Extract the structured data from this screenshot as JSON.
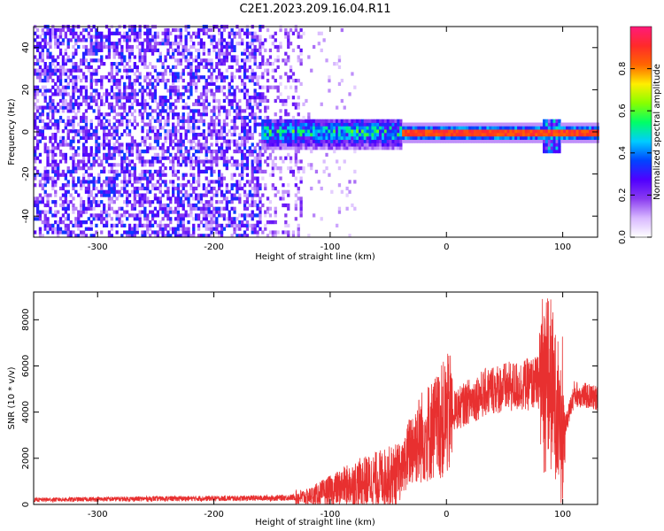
{
  "chart_data": [
    {
      "type": "heatmap",
      "title": "C2E1.2023.209.16.04.R11",
      "xlabel": "Height of straight line (km)",
      "ylabel": "Frequency (Hz)",
      "xlim": [
        -355,
        130
      ],
      "ylim": [
        -50,
        50
      ],
      "xticks": [
        -300,
        -200,
        -100,
        0,
        100
      ],
      "yticks": [
        -40,
        -20,
        0,
        20,
        40
      ],
      "colorbar": {
        "label": "Normalized spectral amplitude",
        "range": [
          0.0,
          1.0
        ],
        "ticks": [
          0.0,
          0.2,
          0.4,
          0.6,
          0.8
        ],
        "colors": [
          "#ffffff",
          "#d8b8ff",
          "#8a3cf0",
          "#5000ff",
          "#0044ff",
          "#00ccff",
          "#00ff66",
          "#88ff00",
          "#ffee00",
          "#ff6600",
          "#ff2a2a",
          "#ff1a7a"
        ]
      },
      "regions": [
        {
          "name": "broadband noise",
          "x_range": [
            -355,
            -130
          ],
          "freq_range": [
            -50,
            50
          ],
          "amplitude": 0.2
        },
        {
          "name": "scattered band",
          "x_range": [
            -160,
            -40
          ],
          "freq_range": [
            -8,
            6
          ],
          "amplitude": 0.35
        },
        {
          "name": "narrow line",
          "x_range": [
            -40,
            130
          ],
          "freq_range": [
            -1.5,
            1.5
          ],
          "amplitude": 0.85
        },
        {
          "name": "spread near 90 km",
          "x_range": [
            82,
            96
          ],
          "freq_range": [
            -10,
            6
          ],
          "amplitude": 0.4
        }
      ]
    },
    {
      "type": "line",
      "xlabel": "Height of straight line (km)",
      "ylabel": "SNR (10 * v/v)",
      "xlim": [
        -355,
        130
      ],
      "ylim": [
        0,
        9200
      ],
      "xticks": [
        -300,
        -200,
        -100,
        0,
        100
      ],
      "yticks": [
        0,
        2000,
        4000,
        6000,
        8000
      ],
      "color": "#e83030",
      "series": [
        {
          "x": [
            -355,
            -300,
            -250,
            -200,
            -150,
            -120,
            -100,
            -80,
            -60,
            -40,
            -30,
            -20,
            -10,
            0,
            20,
            40,
            60,
            80,
            90,
            95,
            100,
            110,
            130
          ],
          "y": [
            200,
            230,
            250,
            260,
            280,
            320,
            600,
            900,
            1100,
            1300,
            2500,
            3000,
            3300,
            3800,
            4500,
            5000,
            5100,
            5300,
            5200,
            4000,
            3000,
            4800,
            4600
          ]
        }
      ]
    }
  ]
}
